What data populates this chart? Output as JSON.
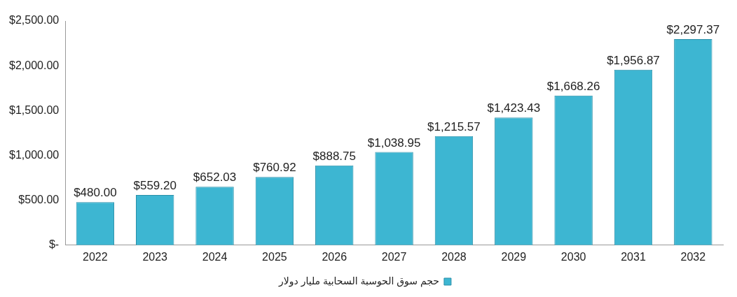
{
  "chart_data": {
    "type": "bar",
    "categories": [
      "2022",
      "2023",
      "2024",
      "2025",
      "2026",
      "2027",
      "2028",
      "2029",
      "2030",
      "2031",
      "2032"
    ],
    "series": [
      {
        "name": "حجم سوق الحوسبة السحابية مليار دولار",
        "color": "#3db6d2",
        "values": [
          480.0,
          559.2,
          652.03,
          760.92,
          888.75,
          1038.95,
          1215.57,
          1423.43,
          1668.26,
          1956.87,
          2297.37
        ],
        "value_labels": [
          "$480.00",
          "$559.20",
          "$652.03",
          "$760.92",
          "$888.75",
          "$1,038.95",
          "$1,215.57",
          "$1,423.43",
          "$1,668.26",
          "$1,956.87",
          "$2,297.37"
        ]
      }
    ],
    "ylim": [
      0,
      2500
    ],
    "yticks": [
      {
        "value": 0,
        "label": "$-"
      },
      {
        "value": 500,
        "label": "$500.00"
      },
      {
        "value": 1000,
        "label": "$1,000.00"
      },
      {
        "value": 1500,
        "label": "$1,500.00"
      },
      {
        "value": 2000,
        "label": "$2,000.00"
      },
      {
        "value": 2500,
        "label": "$2,500.00"
      }
    ],
    "grid": false,
    "legend": "bottom"
  }
}
